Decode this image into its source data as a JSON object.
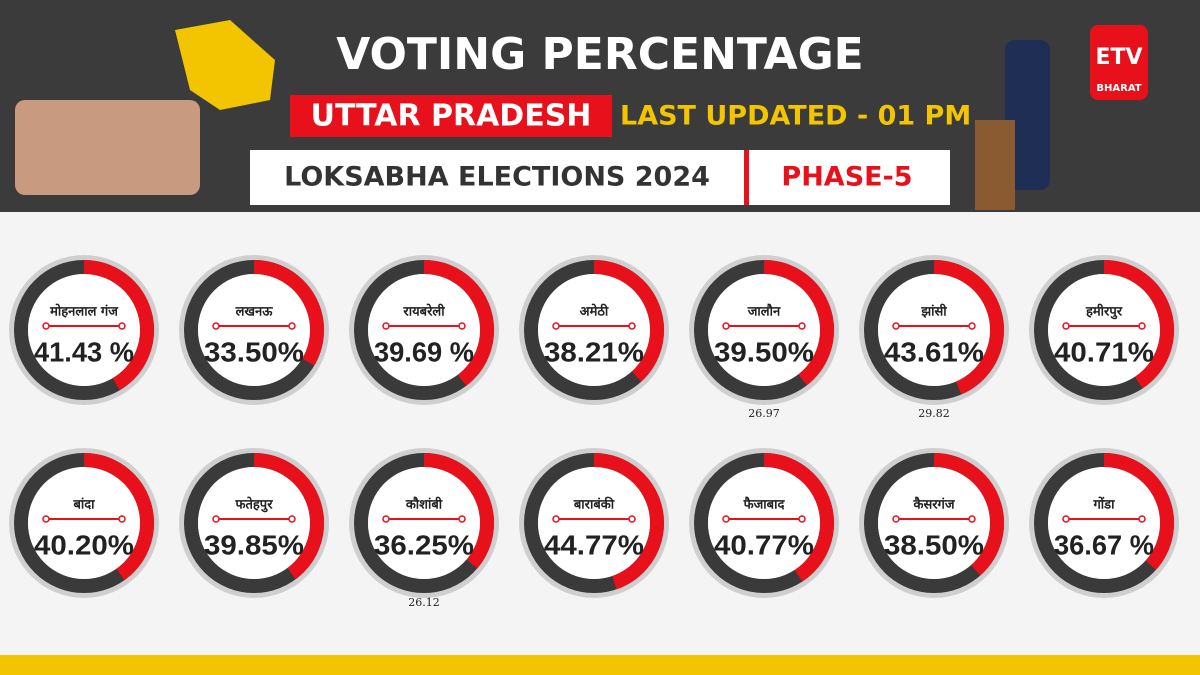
{
  "header": {
    "title": "VOTING PERCENTAGE",
    "state": "UTTAR PRADESH",
    "updated": "LAST UPDATED - 01 PM",
    "election": "LOKSABHA ELECTIONS 2024",
    "phase": "PHASE-5",
    "logo_top": "ETV",
    "logo_bottom": "BHARAT"
  },
  "chart_data": {
    "type": "donut",
    "color": "#e8101a",
    "categories": [
      "मोहनलाल गंज",
      "लखनऊ",
      "रायबरेली",
      "अमेठी",
      "जालौन",
      "झांसी",
      "हमीरपुर",
      "बांदा",
      "फतेहपुर",
      "कौशांबी",
      "बाराबंकी",
      "फैजाबाद",
      "कैसरगंज",
      "गोंडा"
    ],
    "values": [
      41.43,
      33.5,
      39.69,
      38.21,
      39.5,
      43.61,
      40.71,
      40.2,
      39.85,
      36.25,
      44.77,
      40.77,
      38.5,
      36.67
    ],
    "value_labels": [
      "41.43 %",
      "33.50%",
      "39.69 %",
      "38.21%",
      "39.50%",
      "43.61%",
      "40.71%",
      "40.20%",
      "39.85%",
      "36.25%",
      "44.77%",
      "40.77%",
      "38.50%",
      "36.67 %"
    ],
    "annotations": [
      "26.97",
      "29.82",
      "26.12"
    ]
  }
}
